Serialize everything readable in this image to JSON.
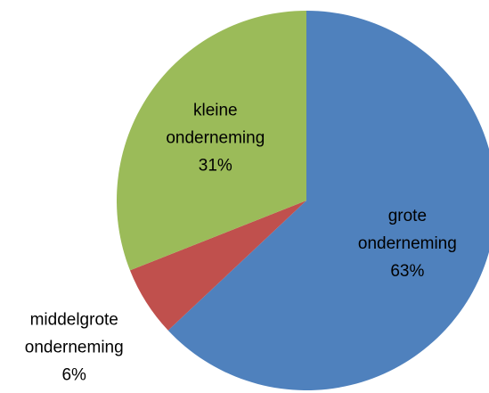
{
  "chart_data": {
    "type": "pie",
    "categories": [
      "grote onderneming",
      "middelgrote onderneming",
      "kleine onderneming"
    ],
    "values": [
      63,
      6,
      31
    ],
    "value_labels": [
      "63%",
      "6%",
      "31%"
    ],
    "colors": [
      "#4f81bd",
      "#c0504d",
      "#9bbb59"
    ]
  }
}
